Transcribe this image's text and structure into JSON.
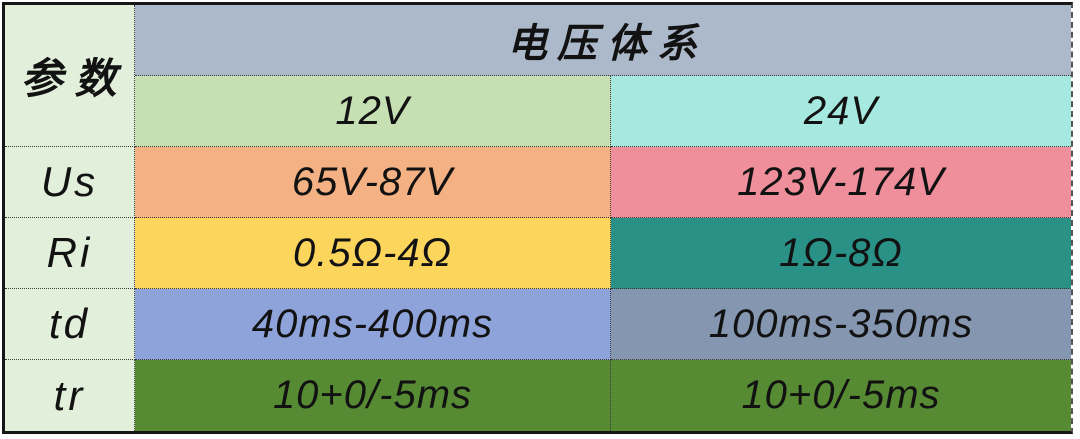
{
  "table": {
    "corner": {
      "label": "参数",
      "bg": "#E2EFDA"
    },
    "header": {
      "label": "电压体系",
      "bg": "#ACB9CA"
    },
    "subheaders": [
      {
        "label": "12V",
        "bg": "#C6E0B4"
      },
      {
        "label": "24V",
        "bg": "#A6E9E0"
      }
    ],
    "param_col_bg": "#E2EFDA",
    "rows": [
      {
        "param": "Us",
        "v12": "65V-87V",
        "bg12": "#F4B183",
        "v24": "123V-174V",
        "bg24": "#EE8F9B"
      },
      {
        "param": "Ri",
        "v12": "0.5Ω-4Ω",
        "bg12": "#FBD55C",
        "v24": "1Ω-8Ω",
        "bg24": "#2A9186"
      },
      {
        "param": "td",
        "v12": "40ms-400ms",
        "bg12": "#8FA3DB",
        "v24": "100ms-350ms",
        "bg24": "#8496B0"
      },
      {
        "param": "tr",
        "v12": "10+0/-5ms",
        "bg12": "#568B33",
        "v24": "10+0/-5ms",
        "bg24": "#568B33"
      }
    ]
  },
  "chart_data": {
    "type": "table",
    "title": "电压体系",
    "corner_header": "参数",
    "columns": [
      "参数",
      "12V",
      "24V"
    ],
    "rows": [
      [
        "Us",
        "65V-87V",
        "123V-174V"
      ],
      [
        "Ri",
        "0.5Ω-4Ω",
        "1Ω-8Ω"
      ],
      [
        "td",
        "40ms-400ms",
        "100ms-350ms"
      ],
      [
        "tr",
        "10+0/-5ms",
        "10+0/-5ms"
      ]
    ],
    "cell_colors": {
      "corner": "#E2EFDA",
      "title_band": "#ACB9CA",
      "param_column": "#E2EFDA",
      "12V_header": "#C6E0B4",
      "24V_header": "#A6E9E0",
      "Us_12V": "#F4B183",
      "Us_24V": "#EE8F9B",
      "Ri_12V": "#FBD55C",
      "Ri_24V": "#2A9186",
      "td_12V": "#8FA3DB",
      "td_24V": "#8496B0",
      "tr_12V": "#568B33",
      "tr_24V": "#568B33"
    }
  }
}
